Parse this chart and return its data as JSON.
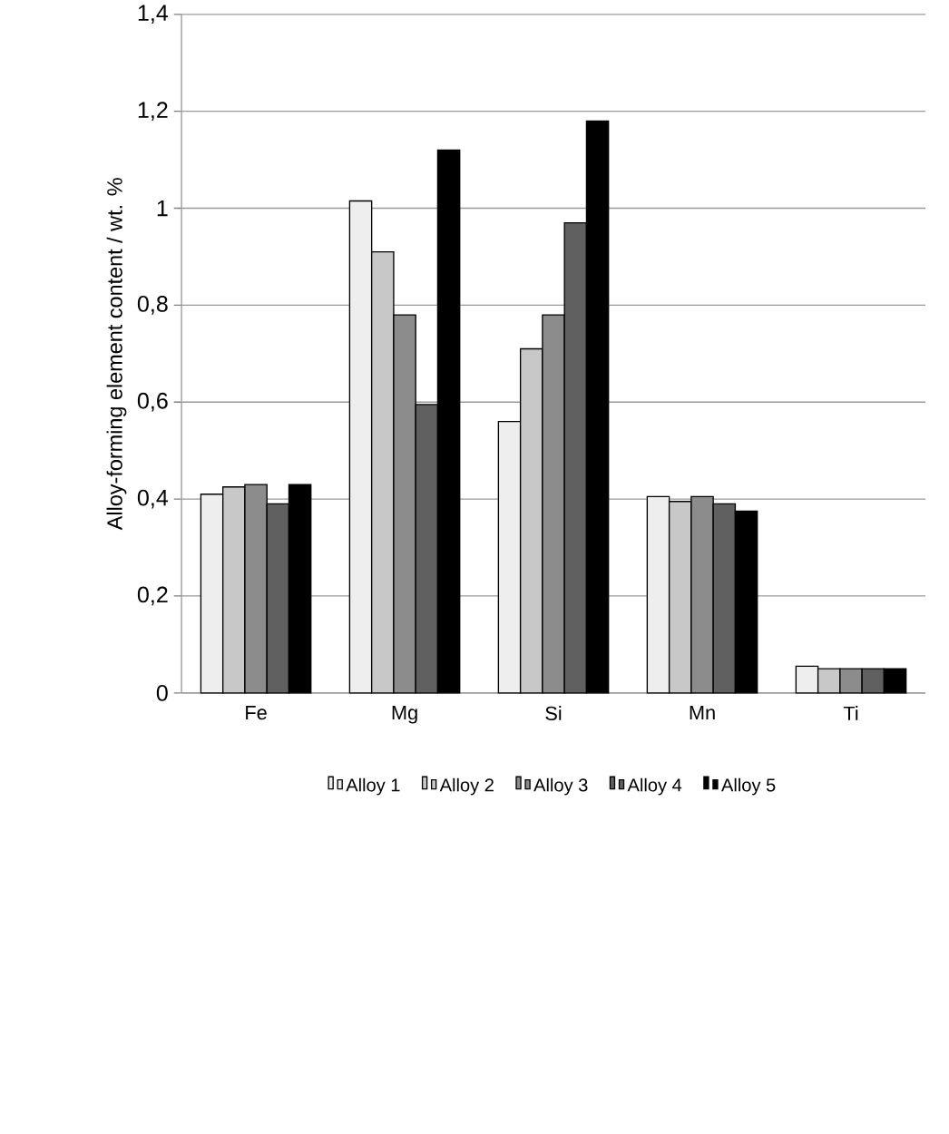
{
  "chart_data": {
    "type": "bar",
    "ylabel": "Alloy-forming element content / wt. %",
    "categories": [
      "Fe",
      "Mg",
      "Si",
      "Mn",
      "Ti"
    ],
    "series": [
      {
        "name": "Alloy 1",
        "color": "#eeeeee",
        "values": [
          0.41,
          1.015,
          0.56,
          0.405,
          0.055
        ]
      },
      {
        "name": "Alloy 2",
        "color": "#c8c8c8",
        "values": [
          0.425,
          0.91,
          0.71,
          0.395,
          0.05
        ]
      },
      {
        "name": "Alloy 3",
        "color": "#8c8c8c",
        "values": [
          0.43,
          0.78,
          0.78,
          0.405,
          0.05
        ]
      },
      {
        "name": "Alloy 4",
        "color": "#606060",
        "values": [
          0.39,
          0.595,
          0.97,
          0.39,
          0.05
        ]
      },
      {
        "name": "Alloy 5",
        "color": "#000000",
        "values": [
          0.43,
          1.12,
          1.18,
          0.375,
          0.05
        ]
      }
    ],
    "ylim": [
      0,
      1.4
    ],
    "yticks": [
      0,
      {
        "value": 0.2,
        "label": "0,2"
      },
      {
        "value": 0.4,
        "label": "0,4"
      },
      {
        "value": 0.6,
        "label": "0,6"
      },
      {
        "value": 0.8,
        "label": "0,8"
      },
      1,
      {
        "value": 1.2,
        "label": "1,2"
      },
      {
        "value": 1.4,
        "label": "1,4"
      }
    ],
    "grid": "y",
    "legend": "bottom"
  }
}
